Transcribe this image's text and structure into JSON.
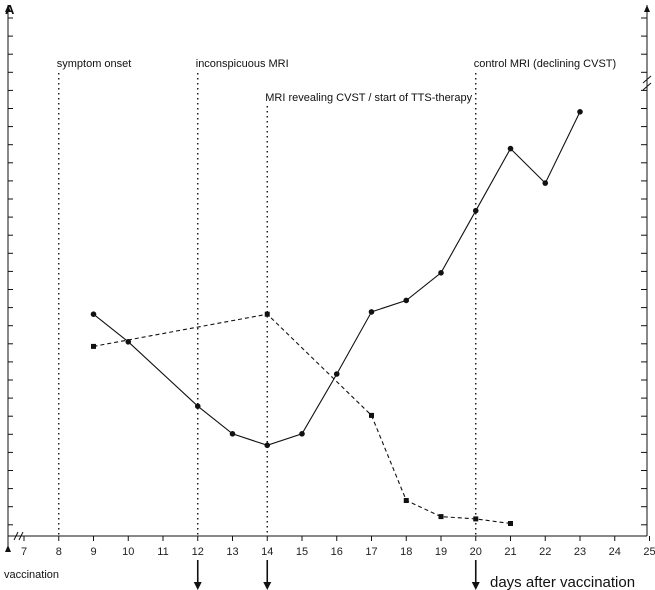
{
  "chart_data": {
    "type": "line",
    "panel_label": "A",
    "xlabel": "days after vaccination",
    "origin_label": "vaccination",
    "x_ticks": [
      7,
      8,
      9,
      10,
      11,
      12,
      13,
      14,
      15,
      16,
      17,
      18,
      19,
      20,
      21,
      22,
      23,
      24,
      25
    ],
    "xlim": [
      6.5,
      25
    ],
    "ylim": [
      0,
      100
    ],
    "grid": false,
    "axis_break": true,
    "series": [
      {
        "style": "solid",
        "marker": "circle",
        "color": "#111111",
        "x": [
          9,
          10,
          12,
          13,
          14,
          15,
          16,
          17,
          18,
          19,
          20,
          21,
          22,
          23
        ],
        "y": [
          48,
          42,
          28,
          22,
          19.5,
          22,
          35,
          48.5,
          51,
          57,
          70.5,
          84,
          76.5,
          92
        ]
      },
      {
        "style": "dashed",
        "marker": "square",
        "color": "#111111",
        "x": [
          9,
          14,
          17,
          18,
          19,
          20,
          21
        ],
        "y": [
          41,
          48,
          26,
          7.5,
          4,
          3.5,
          2.5
        ]
      }
    ],
    "annotations": [
      {
        "x": 8,
        "text": "symptom onset"
      },
      {
        "x": 12,
        "text": "inconspicuous MRI"
      },
      {
        "x": 14,
        "text": "MRI revealing CVST / start of TTS-therapy"
      },
      {
        "x": 20,
        "text": "control MRI (declining CVST)"
      }
    ],
    "arrow_days": [
      12,
      14,
      20
    ]
  }
}
